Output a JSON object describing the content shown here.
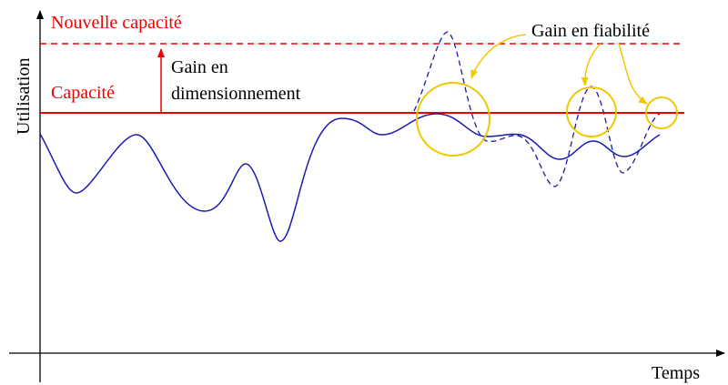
{
  "labels": {
    "y_axis": "Utilisation",
    "x_axis": "Temps",
    "new_capacity": "Nouvelle capacité",
    "capacity": "Capacité",
    "sizing_gain": [
      "Gain en",
      "dimensionnement"
    ],
    "reliability_gain": "Gain en fiabilité"
  }
}
